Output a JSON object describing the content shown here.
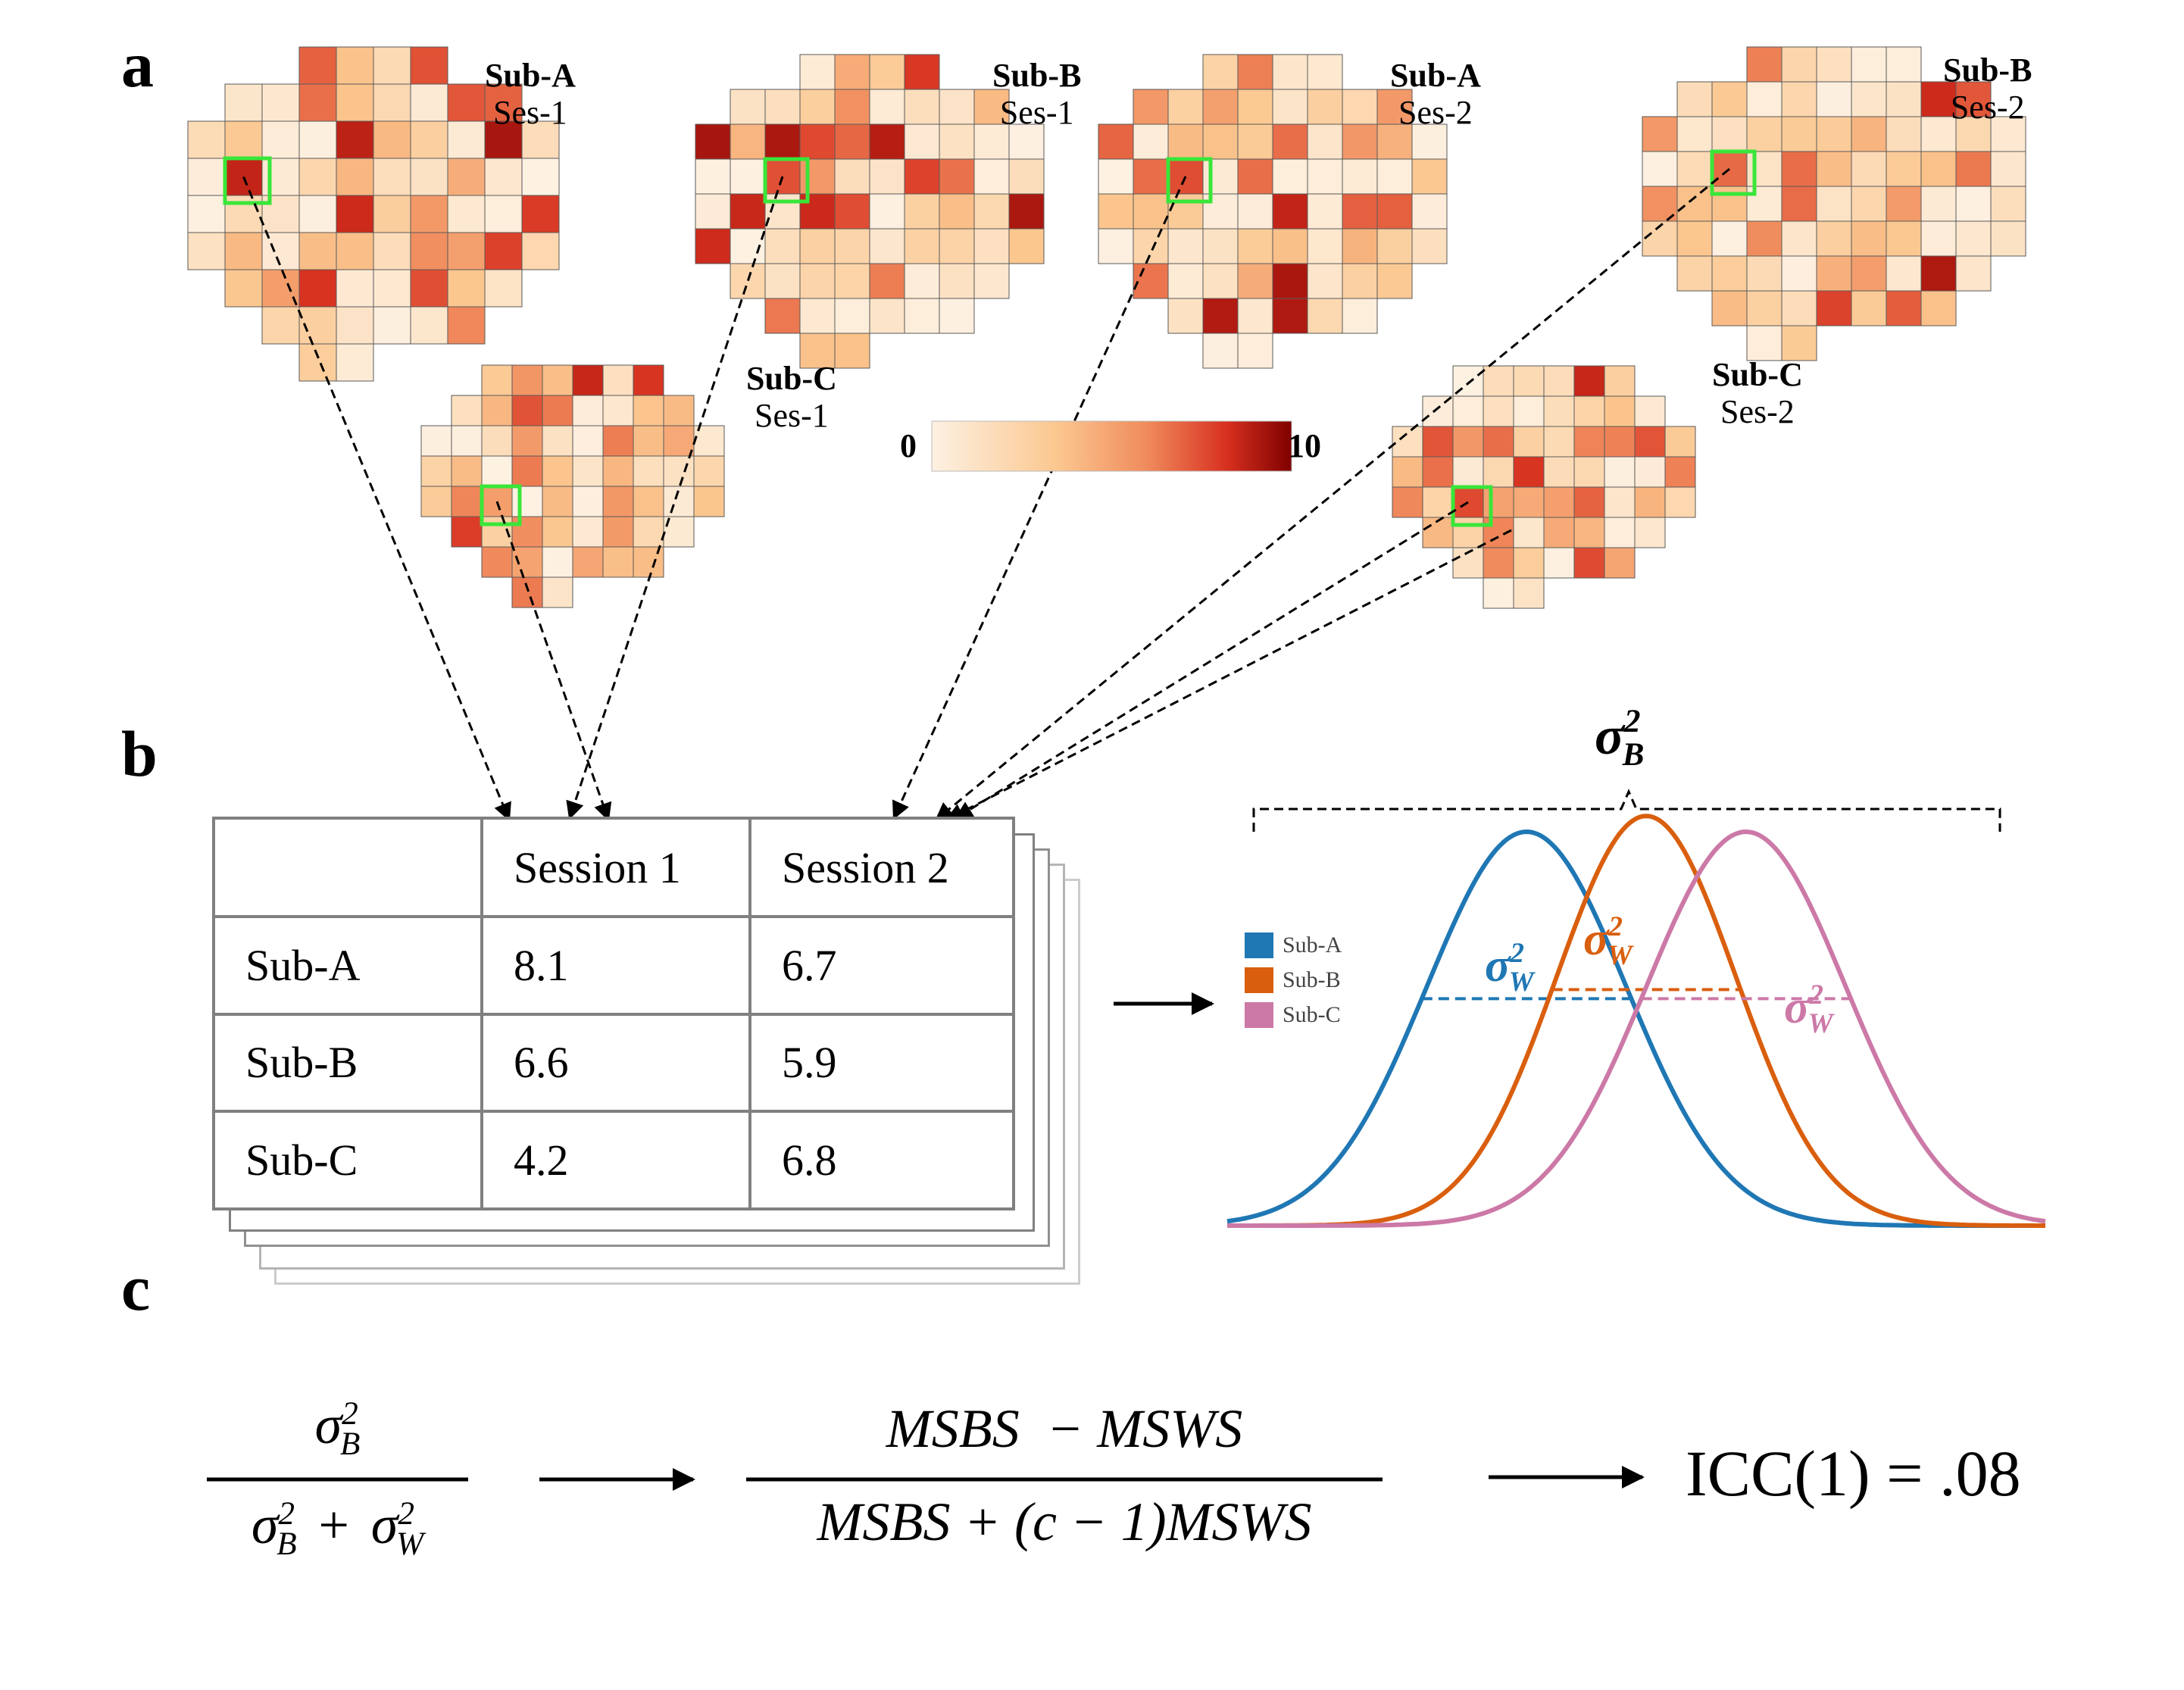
{
  "panels": {
    "a": "a",
    "b": "b",
    "c": "c"
  },
  "brain_maps": [
    {
      "subject": "Sub-A",
      "session": "Ses-1",
      "roi_value": 8.1
    },
    {
      "subject": "Sub-B",
      "session": "Ses-1",
      "roi_value": 6.6
    },
    {
      "subject": "Sub-C",
      "session": "Ses-1",
      "roi_value": 4.2
    },
    {
      "subject": "Sub-A",
      "session": "Ses-2",
      "roi_value": 6.7
    },
    {
      "subject": "Sub-B",
      "session": "Ses-2",
      "roi_value": 5.9
    },
    {
      "subject": "Sub-C",
      "session": "Ses-2",
      "roi_value": 6.8
    }
  ],
  "colorbar": {
    "min": "0",
    "max": "10",
    "colors": [
      "#fdf1e2",
      "#fbc78f",
      "#f08a5c",
      "#d7301f",
      "#7f0000"
    ]
  },
  "roi_box_color": "#39e639",
  "table": {
    "headers": [
      "",
      "Session 1",
      "Session 2"
    ],
    "rows": [
      {
        "label": "Sub-A",
        "s1": "8.1",
        "s2": "6.7"
      },
      {
        "label": "Sub-B",
        "s1": "6.6",
        "s2": "5.9"
      },
      {
        "label": "Sub-C",
        "s1": "4.2",
        "s2": "6.8"
      }
    ]
  },
  "legend": [
    {
      "label": "Sub-A",
      "color": "#1f77b4"
    },
    {
      "label": "Sub-B",
      "color": "#d95f0e"
    },
    {
      "label": "Sub-C",
      "color": "#cc79a7"
    }
  ],
  "distributions": [
    {
      "name": "Sub-A",
      "mean": -1.0,
      "sd": 1.0,
      "color": "#1f77b4"
    },
    {
      "name": "Sub-B",
      "mean": 0.2,
      "sd": 0.9,
      "color": "#d95f0e"
    },
    {
      "name": "Sub-C",
      "mean": 1.2,
      "sd": 1.0,
      "color": "#cc79a7"
    }
  ],
  "sigma": {
    "symbol": "σ",
    "power": "2",
    "between": "B",
    "within": "W"
  },
  "formula": {
    "plus": "+",
    "arrow": "→",
    "numerator2": "MSBS  − MSWS",
    "denominator2": "MSBS + (c − 1)MSWS",
    "result": "ICC(1) = .08"
  }
}
